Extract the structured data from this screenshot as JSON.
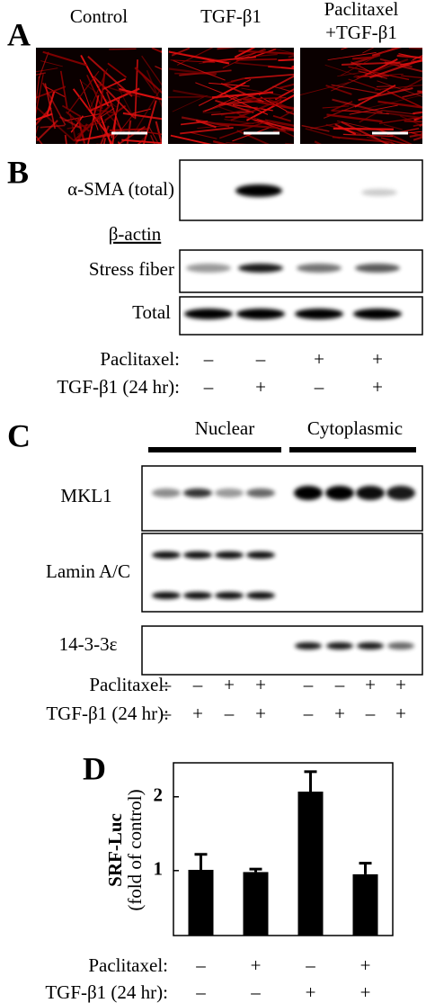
{
  "panel_a": {
    "label": "A",
    "columns": [
      [
        "Control"
      ],
      [
        "TGF-β1"
      ],
      [
        "Paclitaxel",
        "+TGF-β1"
      ]
    ]
  },
  "panel_b": {
    "label": "B",
    "blot_alpha_sma": "α-SMA (total)",
    "loading_heading": "β-actin",
    "blot_stress": "Stress fiber",
    "blot_total": "Total",
    "conditions": [
      {
        "name": "Paclitaxel:",
        "signs": [
          "–",
          "–",
          "+",
          "+"
        ]
      },
      {
        "name": "TGF-β1 (24 hr):",
        "signs": [
          "–",
          "+",
          "–",
          "+"
        ]
      }
    ]
  },
  "panel_c": {
    "label": "C",
    "fractions": [
      "Nuclear",
      "Cytoplasmic"
    ],
    "blots": [
      "MKL1",
      "Lamin A/C",
      "14-3-3ε"
    ],
    "conditions": [
      {
        "name": "Paclitaxel:",
        "signs": [
          "–",
          "–",
          "+",
          "+",
          "–",
          "–",
          "+",
          "+"
        ]
      },
      {
        "name": "TGF-β1 (24 hr):",
        "signs": [
          "–",
          "+",
          "–",
          "+",
          "–",
          "+",
          "–",
          "+"
        ]
      }
    ]
  },
  "chart_data": {
    "type": "bar",
    "panel_label": "D",
    "ylabel": [
      "SRF-Luc",
      "(fold of control)"
    ],
    "values": [
      1.01,
      0.98,
      2.07,
      0.95
    ],
    "errors": [
      0.21,
      0.04,
      0.27,
      0.15
    ],
    "color": "#000000",
    "ylim": [
      0.12,
      2.46
    ],
    "yticks": [
      1,
      2
    ],
    "conditions": [
      {
        "name": "Paclitaxel:",
        "signs": [
          "–",
          "+",
          "–",
          "+"
        ]
      },
      {
        "name": "TGF-β1 (24 hr):",
        "signs": [
          "–",
          "–",
          "+",
          "+"
        ]
      }
    ]
  }
}
